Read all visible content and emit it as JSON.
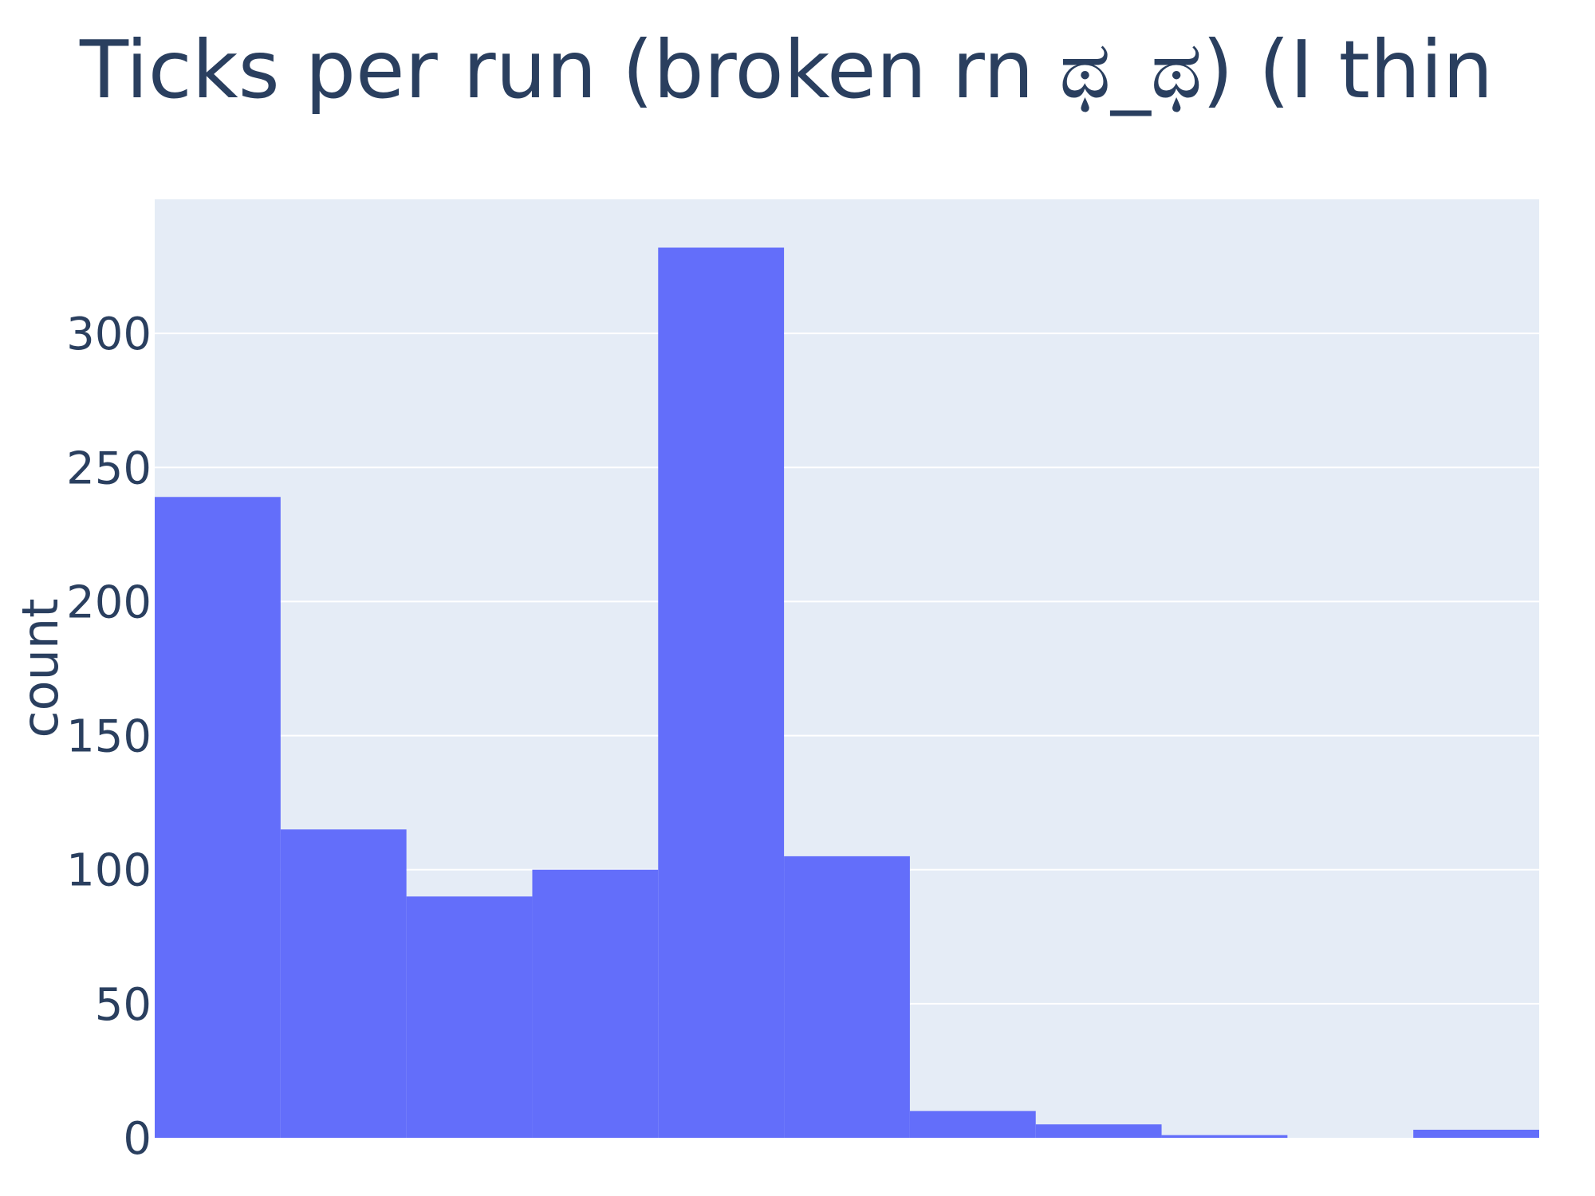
{
  "chart_data": {
    "type": "bar",
    "title": "Ticks per run (broken rn ಥ_ಥ) (I thin",
    "ylabel": "count",
    "xlabel": "",
    "ylim": [
      0,
      350
    ],
    "y_ticks": [
      "0",
      "50",
      "100",
      "150",
      "200",
      "250",
      "300"
    ],
    "y_tick_values": [
      0,
      50,
      100,
      150,
      200,
      250,
      300
    ],
    "grid": true,
    "legend": "none",
    "values": [
      239,
      115,
      90,
      100,
      332,
      105,
      10,
      5,
      1,
      0,
      3
    ],
    "colors": {
      "bar": "#636efa",
      "plot_background": "#e5ecf6",
      "gridline": "#ffffff",
      "text": "#2a3f5f"
    }
  }
}
